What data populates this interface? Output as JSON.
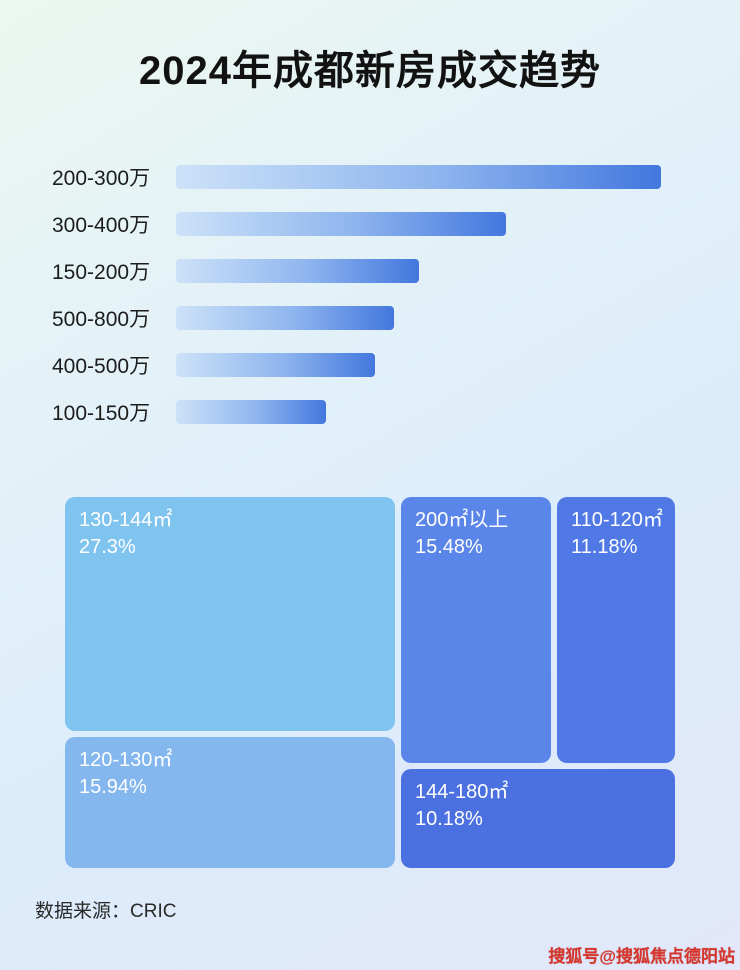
{
  "page": {
    "title": "2024年成都新房成交趋势",
    "footer_source": "数据来源：CRIC",
    "watermark": "搜狐号@搜狐焦点德阳站"
  },
  "colors": {
    "bar_gradient_start": "#cde2f8",
    "bar_gradient_end": "#4377de",
    "treemap_130_144": "#7fc3ef",
    "treemap_120_130": "#83b7ee",
    "treemap_200plus": "#5b86e9",
    "treemap_110_120": "#5079e6",
    "treemap_144_180": "#4b70e0",
    "watermark_red": "#d8362c"
  },
  "chart_data": [
    {
      "type": "bar",
      "orientation": "horizontal",
      "title": "2024年成都新房成交趋势",
      "categories": [
        "200-300万",
        "300-400万",
        "150-200万",
        "500-800万",
        "400-500万",
        "100-150万"
      ],
      "values": [
        100,
        68,
        50,
        45,
        41,
        31
      ],
      "value_note": "relative bar length as % of longest bar; no numeric axis shown in image",
      "xlabel": "",
      "ylabel": "",
      "grid": false,
      "legend": false
    },
    {
      "type": "treemap",
      "items": [
        {
          "label": "130-144㎡",
          "value_pct": 27.3,
          "value_label": "27.3%"
        },
        {
          "label": "120-130㎡",
          "value_pct": 15.94,
          "value_label": "15.94%"
        },
        {
          "label": "200㎡以上",
          "value_pct": 15.48,
          "value_label": "15.48%"
        },
        {
          "label": "110-120㎡",
          "value_pct": 11.18,
          "value_label": "11.18%"
        },
        {
          "label": "144-180㎡",
          "value_pct": 10.18,
          "value_label": "10.18%"
        }
      ]
    }
  ]
}
